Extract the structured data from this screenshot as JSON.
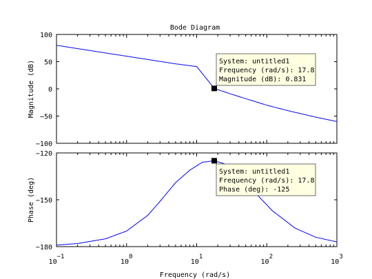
{
  "chart_data": [
    {
      "type": "line",
      "panel": "magnitude",
      "title": "Bode Diagram",
      "ylabel": "Magnitude (dB)",
      "xscale": "log",
      "xlim": [
        0.1,
        1000
      ],
      "ylim": [
        -100,
        100
      ],
      "yticks": [
        100,
        50,
        0,
        -50,
        -100
      ],
      "grid": false,
      "series": [
        {
          "color": "#0000ff",
          "x": [
            0.1,
            0.2,
            0.5,
            1,
            2,
            5,
            10,
            17.8,
            30,
            50,
            100,
            200,
            500,
            1000
          ],
          "y": [
            80,
            74,
            66,
            60,
            54,
            46,
            41,
            0.831,
            -9,
            -18,
            -30,
            -40,
            -52,
            -60
          ]
        }
      ],
      "datatip": {
        "x": 17.8,
        "y": 0.831,
        "line1": "System: untitled1",
        "line2": "Frequency (rad/s): 17.8",
        "line3": "Magnitude (dB): 0.831"
      }
    },
    {
      "type": "line",
      "panel": "phase",
      "xlabel": "Frequency  (rad/s)",
      "ylabel": "Phase (deg)",
      "xscale": "log",
      "xlim": [
        0.1,
        1000
      ],
      "ylim": [
        -180,
        -120
      ],
      "yticks": [
        -120,
        -150,
        -180
      ],
      "xticks": [
        {
          "value": 0.1,
          "base": "10",
          "exp": "-1"
        },
        {
          "value": 1,
          "base": "10",
          "exp": "0"
        },
        {
          "value": 10,
          "base": "10",
          "exp": "1"
        },
        {
          "value": 100,
          "base": "10",
          "exp": "2"
        },
        {
          "value": 1000,
          "base": "10",
          "exp": "3"
        }
      ],
      "grid": false,
      "series": [
        {
          "color": "#0000ff",
          "x": [
            0.1,
            0.2,
            0.5,
            1,
            2,
            3,
            5,
            8,
            12,
            17.8,
            25,
            40,
            70,
            120,
            250,
            500,
            1000
          ],
          "y": [
            -179,
            -178,
            -175,
            -170,
            -160,
            -151,
            -139,
            -131,
            -126,
            -125,
            -127,
            -134,
            -146,
            -157,
            -168,
            -174,
            -177
          ]
        }
      ],
      "datatip": {
        "x": 17.8,
        "y": -125,
        "line1": "System: untitled1",
        "line2": "Frequency (rad/s): 17.8",
        "line3": "Phase (deg): -125"
      }
    }
  ]
}
